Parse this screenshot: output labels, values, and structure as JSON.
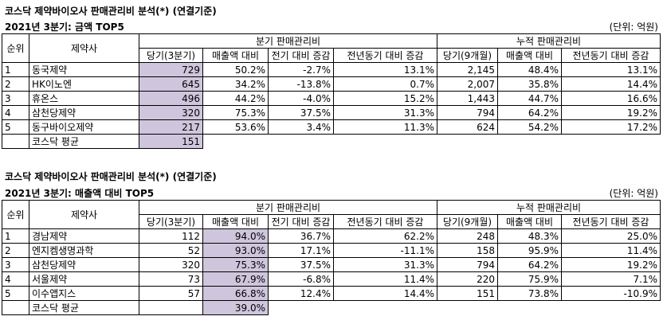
{
  "section1": {
    "title": "코스닥 제약바이오사 판매관리비 분석(*) (연결기준)",
    "subtitle": "2021년 3분기:  금액 TOP5",
    "unit": "(단위: 억원)",
    "headers": {
      "rank": "순위",
      "company": "제약사",
      "quarter_group": "분기 판매관리비",
      "cumulative_group": "누적 판매관리비",
      "q_current": "당기(3분기)",
      "q_sales_ratio": "매출액 대비",
      "q_qoq": "전기 대비 증감",
      "q_yoy": "전년동기 대비 증감",
      "c_current": "당기(9개월)",
      "c_sales_ratio": "매출액 대비",
      "c_yoy": "전년동기 대비 증감"
    },
    "rows": [
      {
        "rank": "1",
        "company": "동국제약",
        "q_current": "729",
        "q_ratio": "50.2%",
        "q_qoq": "-2.7%",
        "q_yoy": "13.1%",
        "c_current": "2,145",
        "c_ratio": "48.4%",
        "c_yoy": "13.1%"
      },
      {
        "rank": "2",
        "company": "HK이노엔",
        "q_current": "645",
        "q_ratio": "34.2%",
        "q_qoq": "-13.8%",
        "q_yoy": "0.7%",
        "c_current": "2,007",
        "c_ratio": "35.8%",
        "c_yoy": "14.4%"
      },
      {
        "rank": "3",
        "company": "휴온스",
        "q_current": "496",
        "q_ratio": "44.2%",
        "q_qoq": "-4.0%",
        "q_yoy": "15.2%",
        "c_current": "1,443",
        "c_ratio": "44.7%",
        "c_yoy": "16.6%"
      },
      {
        "rank": "4",
        "company": "삼천당제약",
        "q_current": "320",
        "q_ratio": "75.3%",
        "q_qoq": "37.5%",
        "q_yoy": "31.3%",
        "c_current": "794",
        "c_ratio": "64.2%",
        "c_yoy": "19.2%"
      },
      {
        "rank": "5",
        "company": "동구바이오제약",
        "q_current": "217",
        "q_ratio": "53.6%",
        "q_qoq": "3.4%",
        "q_yoy": "11.3%",
        "c_current": "624",
        "c_ratio": "54.2%",
        "c_yoy": "17.2%"
      }
    ],
    "average": {
      "label": "코스닥 평균",
      "value": "151"
    }
  },
  "section2": {
    "title": "코스닥 제약바이오사 판매관리비 분석(*) (연결기준)",
    "subtitle": "2021년 3분기:  매출액 대비 TOP5",
    "unit": "(단위: 억원)",
    "headers": {
      "rank": "순위",
      "company": "제약사",
      "quarter_group": "분기 판매관리비",
      "cumulative_group": "누적 판매관리비",
      "q_current": "당기(3분기)",
      "q_sales_ratio": "매출액 대비",
      "q_qoq": "전기 대비 증감",
      "q_yoy": "전년동기 대비 증감",
      "c_current": "당기(9개월)",
      "c_sales_ratio": "매출액 대비",
      "c_yoy": "전년동기 대비 증감"
    },
    "rows": [
      {
        "rank": "1",
        "company": "경남제약",
        "q_current": "112",
        "q_ratio": "94.0%",
        "q_qoq": "36.7%",
        "q_yoy": "62.2%",
        "c_current": "248",
        "c_ratio": "48.3%",
        "c_yoy": "25.0%"
      },
      {
        "rank": "2",
        "company": "엔지켐생명과학",
        "q_current": "52",
        "q_ratio": "93.0%",
        "q_qoq": "17.1%",
        "q_yoy": "-11.1%",
        "c_current": "158",
        "c_ratio": "95.9%",
        "c_yoy": "11.4%"
      },
      {
        "rank": "3",
        "company": "삼천당제약",
        "q_current": "320",
        "q_ratio": "75.3%",
        "q_qoq": "37.5%",
        "q_yoy": "31.3%",
        "c_current": "794",
        "c_ratio": "64.2%",
        "c_yoy": "19.2%"
      },
      {
        "rank": "4",
        "company": "서울제약",
        "q_current": "73",
        "q_ratio": "67.9%",
        "q_qoq": "-6.8%",
        "q_yoy": "11.4%",
        "c_current": "220",
        "c_ratio": "75.9%",
        "c_yoy": "7.1%"
      },
      {
        "rank": "5",
        "company": "이수앱지스",
        "q_current": "57",
        "q_ratio": "66.8%",
        "q_qoq": "12.4%",
        "q_yoy": "14.4%",
        "c_current": "151",
        "c_ratio": "73.8%",
        "c_yoy": "-10.9%"
      }
    ],
    "average": {
      "label": "코스닥 평균",
      "value": "39.0%"
    }
  },
  "colors": {
    "highlight": "#cfc6dd",
    "border": "#000000"
  }
}
